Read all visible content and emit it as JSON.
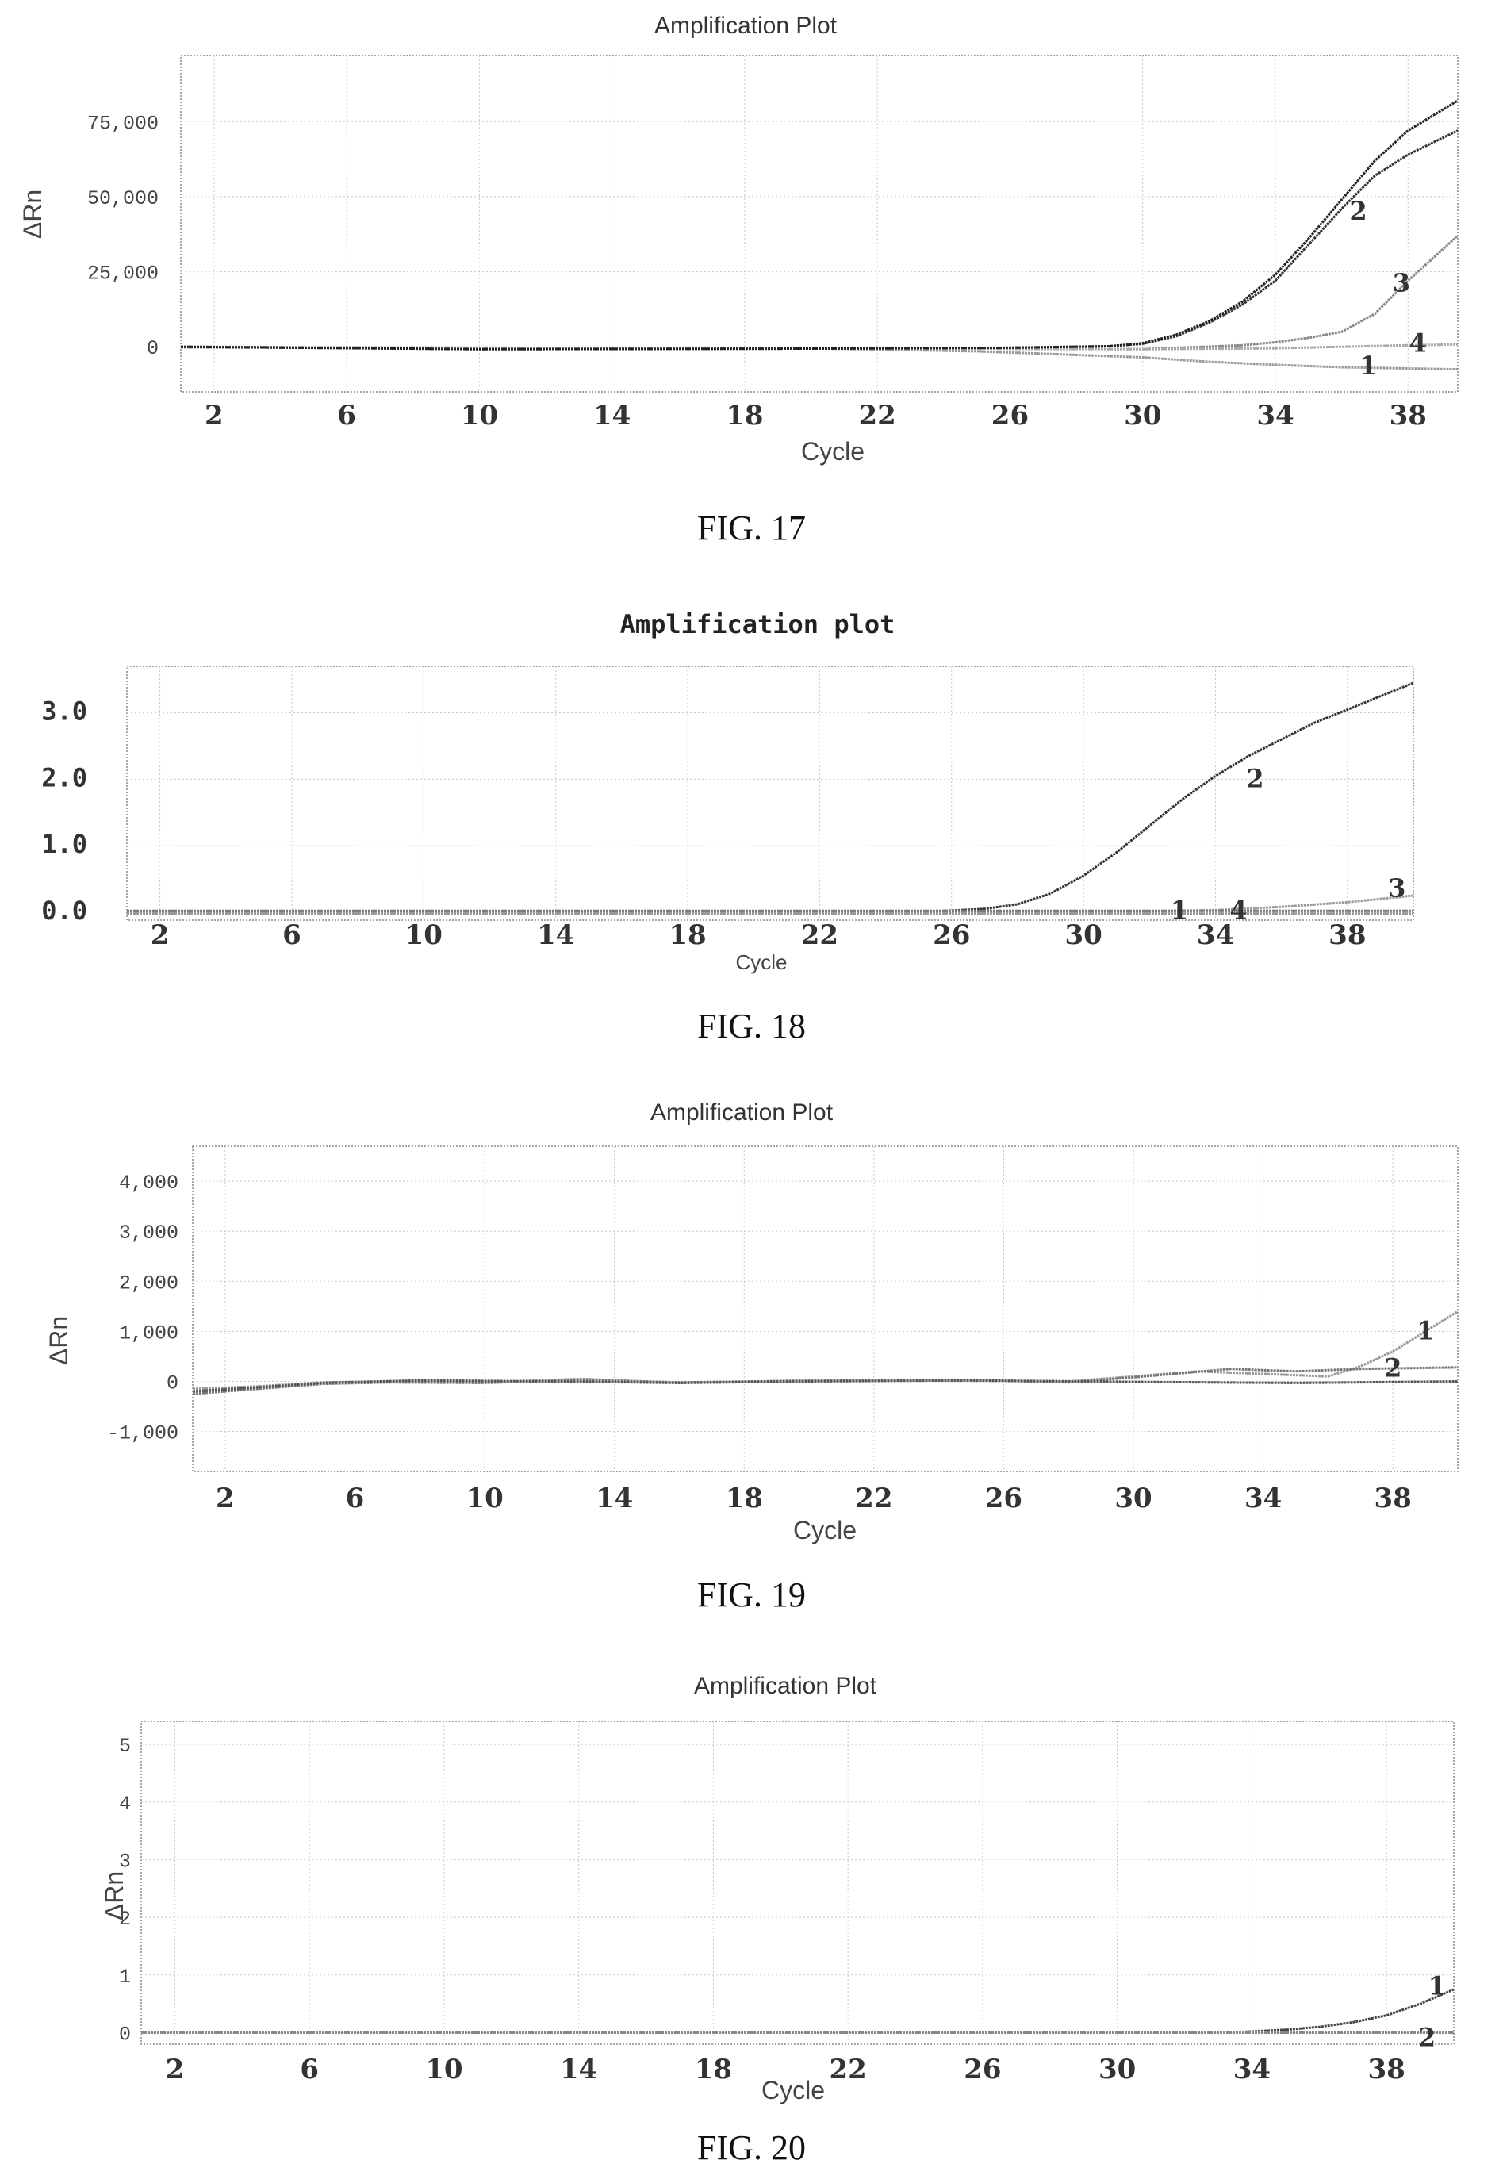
{
  "charts": [
    {
      "caption": "FIG. 17",
      "chart_data": {
        "type": "line",
        "title": "Amplification Plot",
        "xlabel": "Cycle",
        "ylabel": "ΔRn",
        "xlim": [
          1,
          39.5
        ],
        "ylim": [
          -15000,
          97000
        ],
        "xticks": [
          "2",
          "6",
          "10",
          "14",
          "18",
          "22",
          "26",
          "30",
          "34",
          "38"
        ],
        "yticks": [
          {
            "v": 75000,
            "t": "75,000"
          },
          {
            "v": 50000,
            "t": "50,000"
          },
          {
            "v": 25000,
            "t": "25,000"
          },
          {
            "v": 0,
            "t": "0"
          }
        ],
        "series": [
          {
            "name": "1",
            "color": "#999999",
            "x": [
              1,
              10,
              20,
              25,
              30,
              32,
              34,
              36,
              38,
              39.5
            ],
            "y": [
              -200,
              -300,
              -500,
              -1500,
              -3500,
              -5000,
              -6000,
              -6800,
              -7200,
              -7500
            ]
          },
          {
            "name": "2",
            "color": "#333333",
            "x": [
              1,
              10,
              20,
              26,
              29,
              30,
              31,
              32,
              33,
              34,
              35,
              36,
              37,
              38,
              39.5
            ],
            "y": [
              0,
              -800,
              -600,
              -300,
              200,
              1000,
              3500,
              8000,
              14000,
              22000,
              34000,
              46000,
              57000,
              64000,
              72000
            ]
          },
          {
            "name": "3",
            "color": "#888888",
            "x": [
              1,
              10,
              20,
              30,
              33,
              34,
              35,
              36,
              37,
              38,
              39.5
            ],
            "y": [
              0,
              -500,
              -500,
              -800,
              500,
              1500,
              3000,
              5000,
              11000,
              22000,
              37000
            ]
          },
          {
            "name": "4",
            "color": "#aaaaaa",
            "x": [
              1,
              10,
              20,
              30,
              34,
              36,
              38,
              39.5
            ],
            "y": [
              0,
              -300,
              -400,
              -800,
              -500,
              0,
              500,
              800
            ]
          },
          {
            "name": "",
            "color": "#222222",
            "x": [
              1,
              10,
              20,
              26,
              29,
              30,
              31,
              32,
              33,
              34,
              35,
              36,
              37,
              38,
              39.5
            ],
            "y": [
              0,
              -800,
              -600,
              -300,
              200,
              1200,
              4000,
              8500,
              15000,
              24000,
              36000,
              49000,
              62000,
              72000,
              82000
            ]
          }
        ],
        "labels": [
          {
            "t": "2",
            "x": 36.5,
            "y": 45000
          },
          {
            "t": "3",
            "x": 37.8,
            "y": 21000
          },
          {
            "t": "4",
            "x": 38.3,
            "y": 1000
          },
          {
            "t": "1",
            "x": 36.8,
            "y": -6500
          }
        ]
      }
    },
    {
      "caption": "FIG. 18",
      "chart_data": {
        "type": "line",
        "title": "Amplification plot",
        "xlabel": "Cycle",
        "ylabel": "",
        "xlim": [
          1,
          40
        ],
        "ylim": [
          -0.12,
          3.7
        ],
        "xticks": [
          "2",
          "6",
          "10",
          "14",
          "18",
          "22",
          "26",
          "30",
          "34",
          "38"
        ],
        "yticks": [
          {
            "v": 3,
            "t": "3.0"
          },
          {
            "v": 2,
            "t": "2.0"
          },
          {
            "v": 1,
            "t": "1.0"
          },
          {
            "v": 0,
            "t": "0.0"
          }
        ],
        "series": [
          {
            "name": "2",
            "color": "#333333",
            "x": [
              1,
              20,
              25,
              27,
              28,
              29,
              30,
              31,
              32,
              33,
              34,
              35,
              36,
              37,
              38,
              39,
              40
            ],
            "y": [
              0,
              0,
              0,
              0.05,
              0.12,
              0.28,
              0.55,
              0.9,
              1.3,
              1.7,
              2.05,
              2.35,
              2.6,
              2.85,
              3.05,
              3.25,
              3.45
            ]
          },
          {
            "name": "3",
            "color": "#999999",
            "x": [
              1,
              20,
              30,
              34,
              36,
              38,
              40
            ],
            "y": [
              0,
              0,
              0,
              0.03,
              0.08,
              0.15,
              0.25
            ]
          },
          {
            "name": "1",
            "color": "#777777",
            "x": [
              1,
              40
            ],
            "y": [
              0.02,
              0.02
            ]
          },
          {
            "name": "4",
            "color": "#999999",
            "x": [
              1,
              40
            ],
            "y": [
              -0.02,
              -0.02
            ]
          }
        ],
        "labels": [
          {
            "t": "2",
            "x": 35.2,
            "y": 2.0
          },
          {
            "t": "3",
            "x": 39.5,
            "y": 0.35
          },
          {
            "t": "1",
            "x": 32.9,
            "y": 0.02
          },
          {
            "t": "4",
            "x": 34.7,
            "y": 0.02
          }
        ]
      }
    },
    {
      "caption": "FIG. 19",
      "chart_data": {
        "type": "line",
        "title": "Amplification Plot",
        "xlabel": "Cycle",
        "ylabel": "ΔRn",
        "xlim": [
          1,
          40
        ],
        "ylim": [
          -1800,
          4700
        ],
        "xticks": [
          "2",
          "6",
          "10",
          "14",
          "18",
          "22",
          "26",
          "30",
          "34",
          "38"
        ],
        "yticks": [
          {
            "v": 4000,
            "t": "4,000"
          },
          {
            "v": 3000,
            "t": "3,000"
          },
          {
            "v": 2000,
            "t": "2,000"
          },
          {
            "v": 1000,
            "t": "1,000"
          },
          {
            "v": 0,
            "t": "0"
          },
          {
            "v": -1000,
            "t": "-1,000"
          }
        ],
        "series": [
          {
            "name": "1",
            "color": "#999999",
            "x": [
              1,
              3,
              5,
              7,
              10,
              13,
              16,
              20,
              25,
              28,
              30,
              32,
              34,
              36,
              37,
              38,
              39,
              40
            ],
            "y": [
              -150,
              -100,
              -20,
              0,
              -20,
              50,
              -30,
              20,
              10,
              0,
              100,
              200,
              150,
              100,
              300,
              600,
              1000,
              1400
            ]
          },
          {
            "name": "2",
            "color": "#777777",
            "x": [
              1,
              3,
              5,
              7,
              10,
              13,
              16,
              20,
              25,
              28,
              30,
              33,
              35,
              37,
              40
            ],
            "y": [
              -250,
              -150,
              -50,
              -20,
              -30,
              30,
              -20,
              10,
              30,
              -20,
              80,
              250,
              200,
              250,
              280
            ]
          },
          {
            "name": "",
            "color": "#555555",
            "x": [
              1,
              3,
              5,
              8,
              12,
              16,
              20,
              25,
              30,
              35,
              40
            ],
            "y": [
              -200,
              -120,
              -30,
              20,
              0,
              -30,
              0,
              20,
              -10,
              -30,
              0
            ]
          }
        ],
        "labels": [
          {
            "t": "1",
            "x": 39,
            "y": 1000
          },
          {
            "t": "2",
            "x": 38,
            "y": 250
          }
        ]
      }
    },
    {
      "caption": "FIG. 20",
      "chart_data": {
        "type": "line",
        "title": "Amplification Plot",
        "xlabel": "Cycle",
        "ylabel": "ΔRn",
        "xlim": [
          1,
          40
        ],
        "ylim": [
          -0.2,
          5.4
        ],
        "xticks": [
          "2",
          "6",
          "10",
          "14",
          "18",
          "22",
          "26",
          "30",
          "34",
          "38"
        ],
        "yticks": [
          {
            "v": 5,
            "t": "5"
          },
          {
            "v": 4,
            "t": "4"
          },
          {
            "v": 3,
            "t": "3"
          },
          {
            "v": 2,
            "t": "2"
          },
          {
            "v": 1,
            "t": "1"
          },
          {
            "v": 0,
            "t": "0"
          }
        ],
        "series": [
          {
            "name": "1",
            "color": "#444444",
            "x": [
              1,
              30,
              33,
              34,
              35,
              36,
              37,
              38,
              39,
              40
            ],
            "y": [
              0,
              0,
              0,
              0.02,
              0.05,
              0.1,
              0.18,
              0.3,
              0.5,
              0.75
            ]
          },
          {
            "name": "2",
            "color": "#888888",
            "x": [
              1,
              40
            ],
            "y": [
              0,
              0
            ]
          }
        ],
        "labels": [
          {
            "t": "1",
            "x": 39.5,
            "y": 0.8
          },
          {
            "t": "2",
            "x": 39.2,
            "y": -0.1
          }
        ]
      }
    }
  ]
}
